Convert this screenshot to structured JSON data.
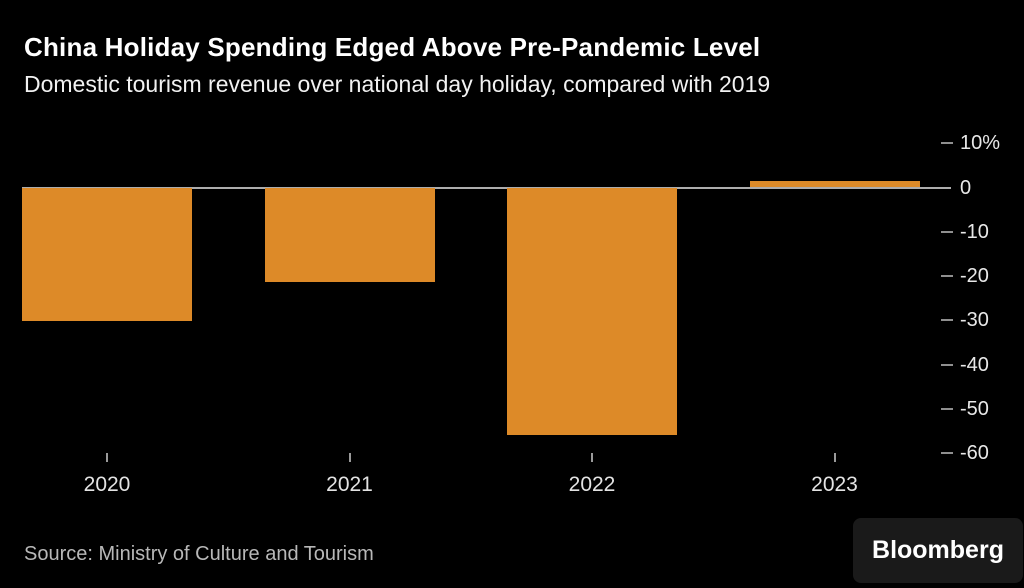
{
  "header": {
    "title": "China Holiday Spending Edged Above Pre-Pandemic Level",
    "subtitle": "Domestic tourism revenue over national day holiday, compared with 2019"
  },
  "chart_data": {
    "type": "bar",
    "categories": [
      "2020",
      "2021",
      "2022",
      "2023"
    ],
    "values": [
      -30.1,
      -21.4,
      -55.8,
      1.5
    ],
    "title": "China Holiday Spending Edged Above Pre-Pandemic Level",
    "subtitle": "Domestic tourism revenue over national day holiday, compared with 2019",
    "xlabel": "",
    "ylabel": "",
    "ylim": [
      -60,
      10
    ],
    "yticks": [
      {
        "value": 10,
        "label": "10%"
      },
      {
        "value": 0,
        "label": "0"
      },
      {
        "value": -10,
        "label": "-10"
      },
      {
        "value": -20,
        "label": "-20"
      },
      {
        "value": -30,
        "label": "-30"
      },
      {
        "value": -40,
        "label": "-40"
      },
      {
        "value": -50,
        "label": "-50"
      },
      {
        "value": -60,
        "label": "-60"
      }
    ],
    "grid": false,
    "legend": "none",
    "bar_color": "#DD8A28",
    "zero_line_color": "#ADADAD",
    "background_color": "#000000"
  },
  "footer": {
    "source": "Source: Ministry of Culture and Tourism",
    "brand": "Bloomberg"
  }
}
